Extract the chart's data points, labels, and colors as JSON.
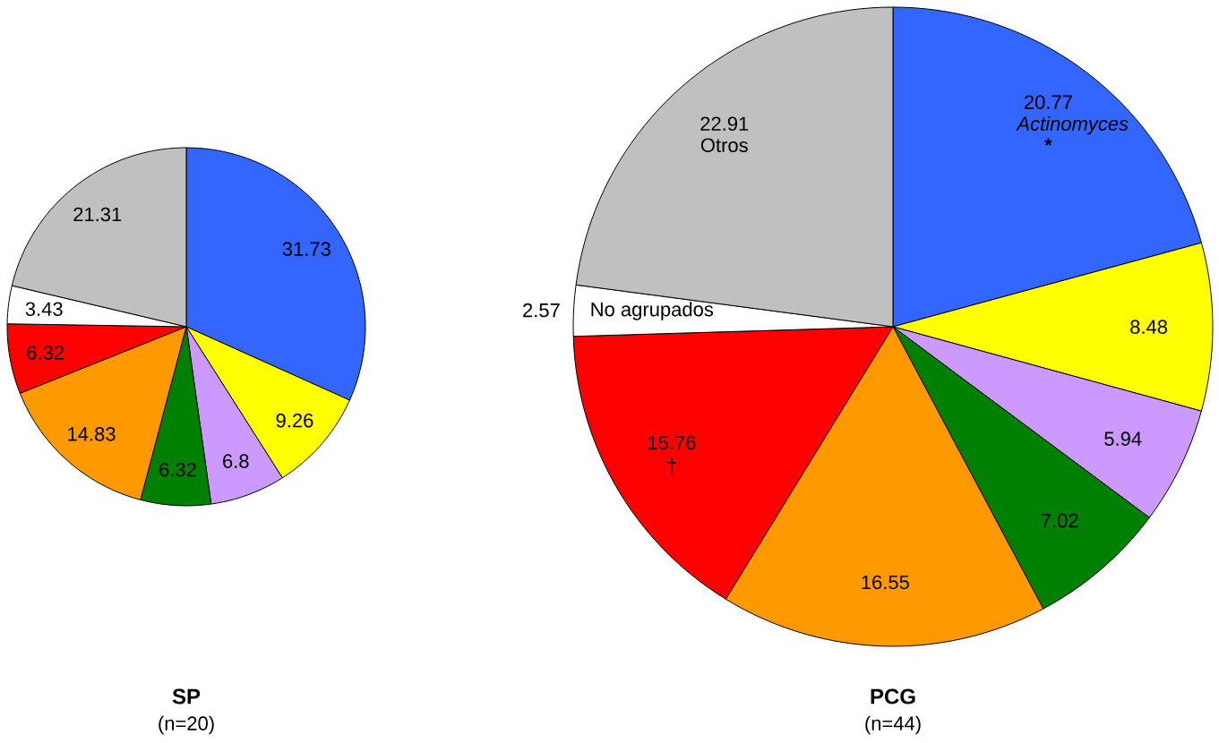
{
  "chart_data": [
    {
      "type": "pie",
      "title": "SP",
      "subtitle": "(n=20)",
      "categories": [
        null,
        null,
        null,
        null,
        null,
        null,
        null,
        null
      ],
      "values": [
        31.73,
        9.26,
        6.8,
        6.32,
        14.83,
        6.32,
        3.43,
        21.31
      ],
      "colors": [
        "#3366ff",
        "#ffff00",
        "#cc99ff",
        "#008000",
        "#ff9900",
        "#ff0000",
        "#ffffff",
        "#c0c0c0"
      ],
      "data_labels": true
    },
    {
      "type": "pie",
      "title": "PCG",
      "subtitle": "(n=44)",
      "categories": [
        "*Actinomyces*",
        null,
        null,
        null,
        null,
        null,
        "No agrupados",
        "Otros"
      ],
      "values": [
        20.77,
        8.48,
        5.94,
        7.02,
        16.55,
        15.76,
        2.57,
        22.91
      ],
      "colors": [
        "#3366ff",
        "#ffff00",
        "#cc99ff",
        "#008000",
        "#ff9900",
        "#ff0000",
        "#ffffff",
        "#c0c0c0"
      ],
      "value_labels": [
        "20.77",
        "8.48",
        "5.94",
        "7.02",
        "16.55",
        "15.76 †",
        "2.57",
        "22.91"
      ],
      "annotations": [
        {
          "text": "*",
          "x": "Actinomyces"
        }
      ]
    }
  ]
}
